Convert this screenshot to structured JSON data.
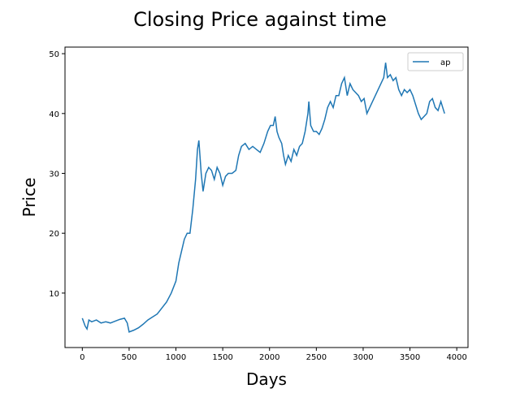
{
  "chart_data": {
    "type": "line",
    "title": "Closing Price against time",
    "xlabel": "Days",
    "ylabel": "Price",
    "x": [
      0,
      30,
      50,
      70,
      100,
      150,
      200,
      250,
      300,
      350,
      400,
      450,
      480,
      500,
      550,
      600,
      650,
      700,
      750,
      800,
      850,
      900,
      950,
      1000,
      1030,
      1060,
      1090,
      1120,
      1150,
      1180,
      1210,
      1230,
      1245,
      1270,
      1290,
      1320,
      1350,
      1380,
      1410,
      1440,
      1470,
      1500,
      1530,
      1560,
      1600,
      1640,
      1670,
      1700,
      1740,
      1780,
      1820,
      1860,
      1900,
      1940,
      1980,
      2010,
      2040,
      2060,
      2080,
      2100,
      2130,
      2150,
      2170,
      2200,
      2230,
      2260,
      2290,
      2320,
      2350,
      2380,
      2410,
      2420,
      2440,
      2470,
      2500,
      2530,
      2560,
      2590,
      2620,
      2650,
      2680,
      2710,
      2740,
      2770,
      2800,
      2830,
      2860,
      2890,
      2920,
      2950,
      2980,
      3010,
      3040,
      3070,
      3100,
      3130,
      3160,
      3190,
      3220,
      3240,
      3260,
      3290,
      3320,
      3350,
      3380,
      3410,
      3440,
      3470,
      3500,
      3530,
      3560,
      3590,
      3620,
      3650,
      3680,
      3710,
      3740,
      3770,
      3800,
      3830,
      3850,
      3870
    ],
    "series": [
      {
        "name": "ap",
        "color": "#1f77b4",
        "values": [
          5.8,
          4.5,
          4.0,
          5.5,
          5.2,
          5.5,
          5.0,
          5.2,
          5.0,
          5.3,
          5.6,
          5.8,
          5.0,
          3.5,
          3.8,
          4.2,
          4.8,
          5.5,
          6.0,
          6.5,
          7.5,
          8.5,
          10,
          12,
          15,
          17,
          19,
          20,
          20,
          24,
          29,
          34,
          35.5,
          30,
          27,
          30,
          31,
          30.5,
          29,
          31,
          30,
          28,
          29.5,
          30,
          30,
          30.5,
          33,
          34.5,
          35,
          34,
          34.5,
          34,
          33.5,
          35,
          37,
          38,
          38,
          39.5,
          37,
          36,
          35,
          33,
          31.5,
          33,
          32,
          34,
          33,
          34.5,
          35,
          37,
          40,
          42,
          38,
          37,
          37,
          36.5,
          37.5,
          39,
          41,
          42,
          41,
          43,
          43,
          45,
          46,
          43,
          45,
          44,
          43.5,
          43,
          42,
          42.5,
          40,
          41,
          42,
          43,
          44,
          45,
          46,
          48.5,
          46,
          46.5,
          45.5,
          46,
          44,
          43,
          44,
          43.5,
          44,
          43,
          41.5,
          40,
          39,
          39.5,
          40,
          42,
          42.5,
          41,
          40.5,
          42,
          41,
          40
        ]
      }
    ],
    "xlim": [
      -185,
      4120
    ],
    "ylim": [
      0.9,
      51.1
    ],
    "xticks": [
      0,
      500,
      1000,
      1500,
      2000,
      2500,
      3000,
      3500,
      4000
    ],
    "yticks": [
      10,
      20,
      30,
      40,
      50
    ],
    "legend": "upper right"
  }
}
